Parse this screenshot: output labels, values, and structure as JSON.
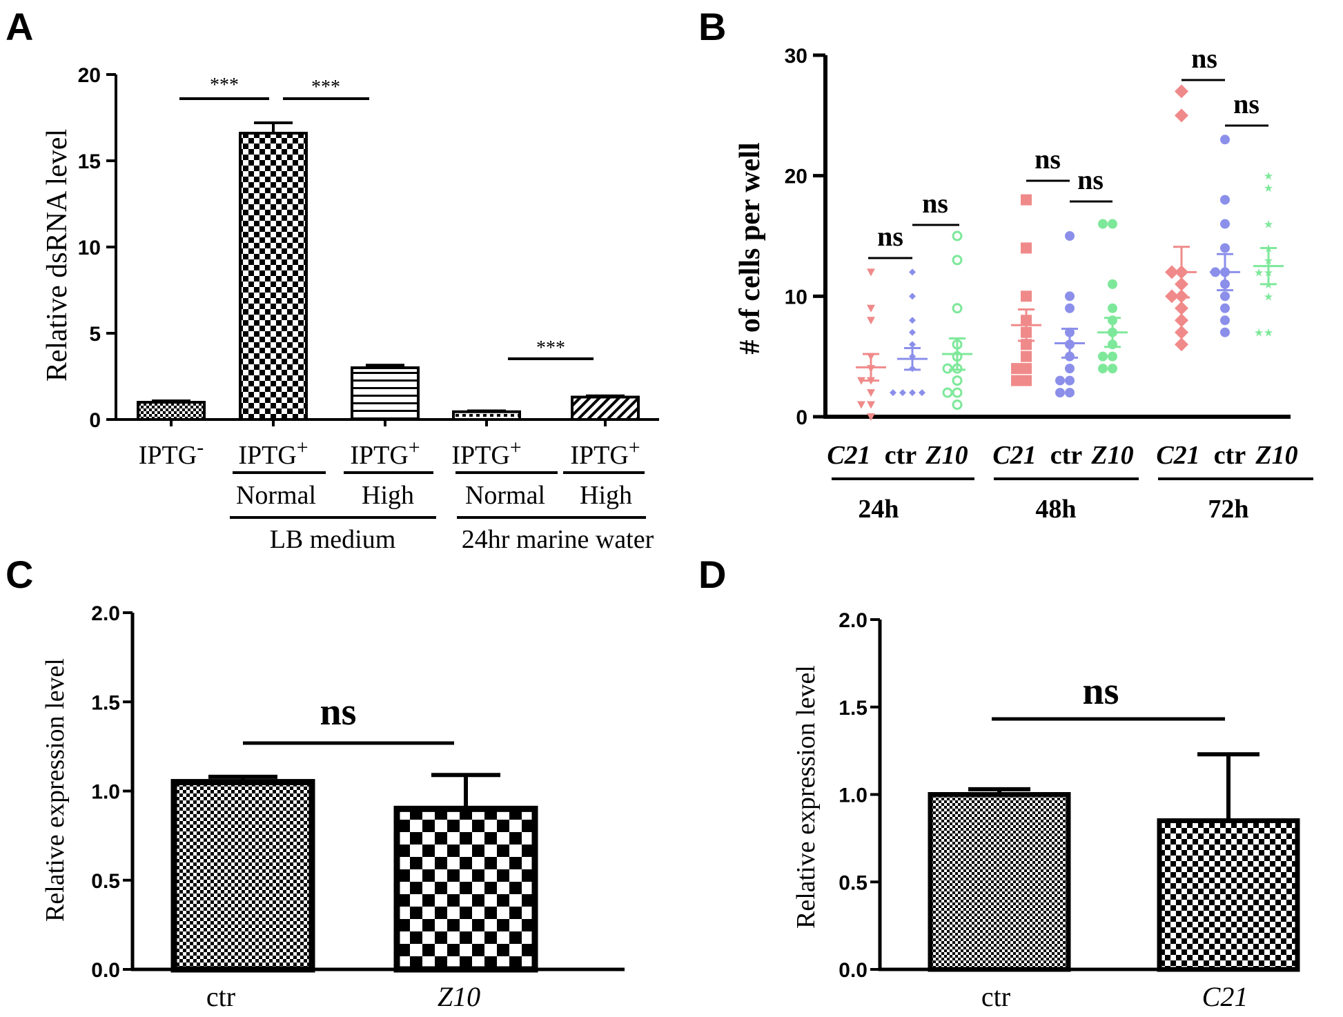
{
  "chart_data": [
    {
      "panel": "A",
      "type": "bar",
      "ylabel": "Relative dsRNA level",
      "ylim": [
        0,
        20
      ],
      "yticks": [
        "0",
        "5",
        "10",
        "15",
        "20"
      ],
      "bars": [
        {
          "label": "IPTG",
          "sup": "-",
          "value": 1.0,
          "error": 0.08,
          "pattern": "fine-check"
        },
        {
          "label": "IPTG",
          "sup": "+",
          "value": 16.6,
          "error": 0.6,
          "pattern": "check"
        },
        {
          "label": "IPTG",
          "sup": "+",
          "value": 3.0,
          "error": 0.15,
          "pattern": "hlines"
        },
        {
          "label": "IPTG",
          "sup": "+",
          "value": 0.45,
          "error": 0.05,
          "pattern": "dots"
        },
        {
          "label": "IPTG",
          "sup": "+",
          "value": 1.3,
          "error": 0.07,
          "pattern": "diag"
        }
      ],
      "subgroups": [
        "Normal",
        "High",
        "Normal",
        "High"
      ],
      "groups": [
        "LB medium",
        "24hr marine water"
      ],
      "significance": [
        "***",
        "***",
        "***"
      ]
    },
    {
      "panel": "B",
      "type": "scatter",
      "ylabel": "# of cells per well",
      "ylim": [
        0,
        30
      ],
      "yticks": [
        "0",
        "10",
        "20",
        "30"
      ],
      "conditions": [
        "C21",
        "ctr",
        "Z10"
      ],
      "timepoints": [
        "24h",
        "48h",
        "72h"
      ],
      "colors": {
        "C21": "#f08a8a",
        "ctr": "#8b8fea",
        "Z10": "#7ee89a"
      },
      "series": [
        {
          "time": "24h",
          "cond": "C21",
          "mean": 4.1,
          "sem": 1.1,
          "values": [
            12,
            9,
            8,
            5,
            4,
            3,
            3,
            2,
            1,
            1,
            0
          ]
        },
        {
          "time": "24h",
          "cond": "ctr",
          "mean": 4.8,
          "sem": 0.9,
          "values": [
            12,
            10,
            8,
            7,
            6,
            5,
            4,
            2,
            2,
            2,
            2
          ]
        },
        {
          "time": "24h",
          "cond": "Z10",
          "mean": 5.2,
          "sem": 1.3,
          "values": [
            15,
            13,
            9,
            6,
            5,
            4,
            4,
            3,
            2,
            2,
            1
          ]
        },
        {
          "time": "48h",
          "cond": "C21",
          "mean": 7.6,
          "sem": 1.3,
          "values": [
            18,
            14,
            10,
            8,
            7,
            6,
            5,
            4,
            4,
            3,
            3
          ]
        },
        {
          "time": "48h",
          "cond": "ctr",
          "mean": 6.1,
          "sem": 1.2,
          "values": [
            15,
            10,
            9,
            7,
            6,
            5,
            4,
            3,
            3,
            2,
            2
          ]
        },
        {
          "time": "48h",
          "cond": "Z10",
          "mean": 7.0,
          "sem": 1.2,
          "values": [
            16,
            16,
            11,
            9,
            8,
            7,
            6,
            5,
            5,
            4,
            4
          ]
        },
        {
          "time": "72h",
          "cond": "C21",
          "mean": 12.0,
          "sem": 2.1,
          "values": [
            27,
            25,
            12,
            12,
            11,
            10,
            10,
            9,
            8,
            7,
            6
          ]
        },
        {
          "time": "72h",
          "cond": "ctr",
          "mean": 12.0,
          "sem": 1.5,
          "values": [
            23,
            18,
            16,
            14,
            12,
            12,
            11,
            10,
            9,
            8,
            7
          ]
        },
        {
          "time": "72h",
          "cond": "Z10",
          "mean": 12.5,
          "sem": 1.5,
          "values": [
            20,
            19,
            16,
            14,
            13,
            12,
            12,
            11,
            10,
            7,
            7
          ]
        }
      ],
      "significance": [
        "ns",
        "ns",
        "ns",
        "ns",
        "ns",
        "ns"
      ]
    },
    {
      "panel": "C",
      "type": "bar",
      "ylabel": "Relative expression level",
      "ylim": [
        0,
        2.0
      ],
      "yticks": [
        "0.0",
        "0.5",
        "1.0",
        "1.5",
        "2.0"
      ],
      "categories": [
        "ctr",
        "Z10"
      ],
      "values": [
        1.05,
        0.9
      ],
      "errors": [
        0.03,
        0.19
      ],
      "significance": "ns"
    },
    {
      "panel": "D",
      "type": "bar",
      "ylabel": "Relative expression level",
      "ylim": [
        0,
        2.0
      ],
      "yticks": [
        "0.0",
        "0.5",
        "1.0",
        "1.5",
        "2.0"
      ],
      "categories": [
        "ctr",
        "C21"
      ],
      "values": [
        1.0,
        0.85
      ],
      "errors": [
        0.03,
        0.38
      ],
      "significance": "ns"
    }
  ]
}
